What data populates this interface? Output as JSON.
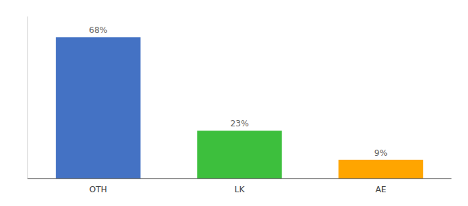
{
  "chart_data": {
    "type": "bar",
    "categories": [
      "OTH",
      "LK",
      "AE"
    ],
    "values": [
      68,
      23,
      9
    ],
    "value_labels": [
      "68%",
      "23%",
      "9%"
    ],
    "colors": [
      "#4472C4",
      "#3DBF3D",
      "#FFA500"
    ],
    "ylim": [
      0,
      78
    ],
    "data_labels": true,
    "tick_labels": "x",
    "grid": false
  }
}
